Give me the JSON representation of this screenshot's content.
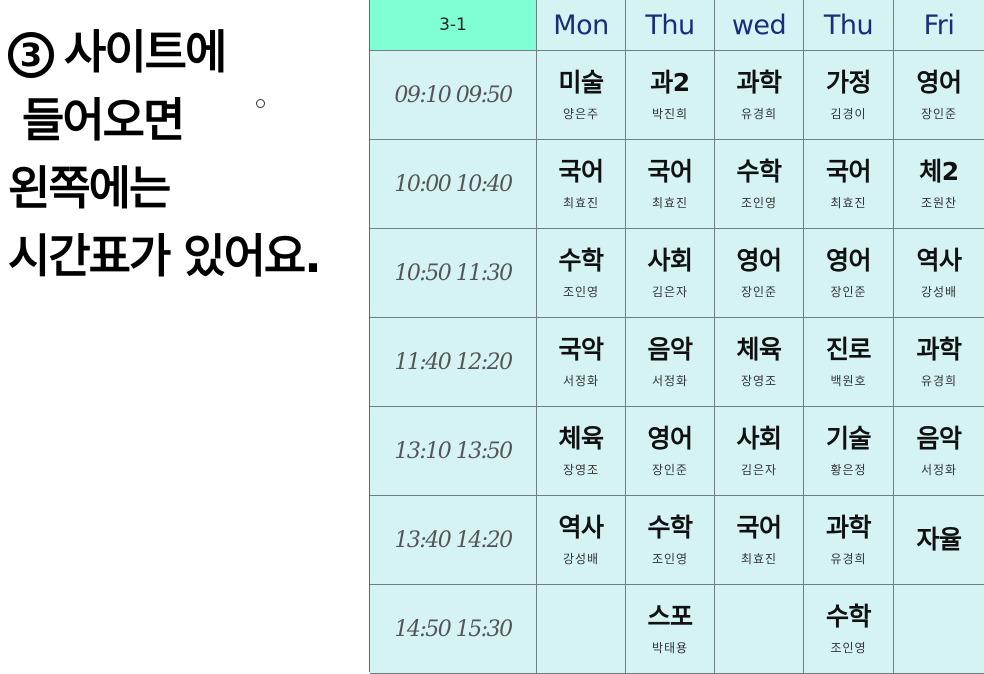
{
  "note": {
    "number": "3",
    "lines": [
      "사이트에",
      "들어오면",
      "왼쪽에는",
      "시간표가 있어요."
    ]
  },
  "timetable": {
    "class_label": "3-1",
    "days": [
      "Mon",
      "Thu",
      "wed",
      "Thu",
      "Fri"
    ],
    "rows": [
      {
        "time": "09:10 09:50",
        "cells": [
          {
            "subject": "미술",
            "teacher": "양은주"
          },
          {
            "subject": "과2",
            "teacher": "박진희"
          },
          {
            "subject": "과학",
            "teacher": "유경희"
          },
          {
            "subject": "가정",
            "teacher": "김경이"
          },
          {
            "subject": "영어",
            "teacher": "장인준"
          }
        ]
      },
      {
        "time": "10:00 10:40",
        "cells": [
          {
            "subject": "국어",
            "teacher": "최효진"
          },
          {
            "subject": "국어",
            "teacher": "최효진"
          },
          {
            "subject": "수학",
            "teacher": "조인영"
          },
          {
            "subject": "국어",
            "teacher": "최효진"
          },
          {
            "subject": "체2",
            "teacher": "조원찬"
          }
        ]
      },
      {
        "time": "10:50 11:30",
        "cells": [
          {
            "subject": "수학",
            "teacher": "조인영"
          },
          {
            "subject": "사회",
            "teacher": "김은자"
          },
          {
            "subject": "영어",
            "teacher": "장인준"
          },
          {
            "subject": "영어",
            "teacher": "장인준"
          },
          {
            "subject": "역사",
            "teacher": "강성배"
          }
        ]
      },
      {
        "time": "11:40 12:20",
        "cells": [
          {
            "subject": "국악",
            "teacher": "서정화"
          },
          {
            "subject": "음악",
            "teacher": "서정화"
          },
          {
            "subject": "체육",
            "teacher": "장영조"
          },
          {
            "subject": "진로",
            "teacher": "백원호"
          },
          {
            "subject": "과학",
            "teacher": "유경희"
          }
        ]
      },
      {
        "time": "13:10 13:50",
        "cells": [
          {
            "subject": "체육",
            "teacher": "장영조"
          },
          {
            "subject": "영어",
            "teacher": "장인준"
          },
          {
            "subject": "사회",
            "teacher": "김은자"
          },
          {
            "subject": "기술",
            "teacher": "황은정"
          },
          {
            "subject": "음악",
            "teacher": "서정화"
          }
        ]
      },
      {
        "time": "13:40 14:20",
        "cells": [
          {
            "subject": "역사",
            "teacher": "강성배"
          },
          {
            "subject": "수학",
            "teacher": "조인영"
          },
          {
            "subject": "국어",
            "teacher": "최효진"
          },
          {
            "subject": "과학",
            "teacher": "유경희"
          },
          {
            "subject": "자율",
            "teacher": ""
          }
        ]
      },
      {
        "time": "14:50 15:30",
        "cells": [
          {
            "subject": "",
            "teacher": ""
          },
          {
            "subject": "스포",
            "teacher": "박태용"
          },
          {
            "subject": "",
            "teacher": ""
          },
          {
            "subject": "수학",
            "teacher": "조인영"
          },
          {
            "subject": "",
            "teacher": ""
          }
        ]
      }
    ]
  },
  "colors": {
    "header_corner": "#7fffd4",
    "cell_background": "#d5f3f3",
    "day_text": "#1a2c7a",
    "grid_line": "#6f7f7f"
  }
}
